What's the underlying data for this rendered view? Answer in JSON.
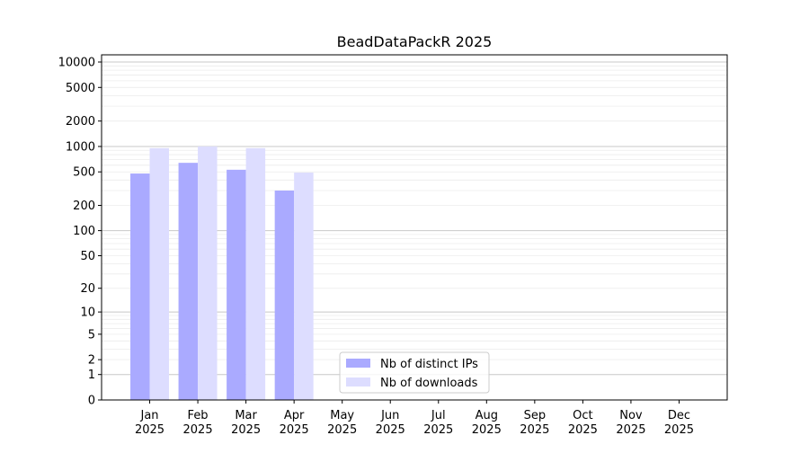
{
  "chart_data": {
    "type": "bar",
    "title": "BeadDataPackR 2025",
    "xlabel": "",
    "ylabel": "",
    "yscale": "symlog (log10(1+y))",
    "ylim": [
      0,
      10000
    ],
    "yticks": [
      0,
      1,
      2,
      5,
      10,
      20,
      50,
      100,
      200,
      500,
      1000,
      2000,
      5000,
      10000
    ],
    "categories": [
      "Jan\n2025",
      "Feb\n2025",
      "Mar\n2025",
      "Apr\n2025",
      "May\n2025",
      "Jun\n2025",
      "Jul\n2025",
      "Aug\n2025",
      "Sep\n2025",
      "Oct\n2025",
      "Nov\n2025",
      "Dec\n2025"
    ],
    "series": [
      {
        "name": "Nb of distinct IPs",
        "color": "#aaaaff",
        "values": [
          478,
          640,
          530,
          300,
          null,
          null,
          null,
          null,
          null,
          null,
          null,
          null
        ]
      },
      {
        "name": "Nb of downloads",
        "color": "#ddddff",
        "values": [
          955,
          1000,
          955,
          490,
          null,
          null,
          null,
          null,
          null,
          null,
          null,
          null
        ]
      }
    ],
    "grid": true,
    "legend": "bottom-center"
  }
}
